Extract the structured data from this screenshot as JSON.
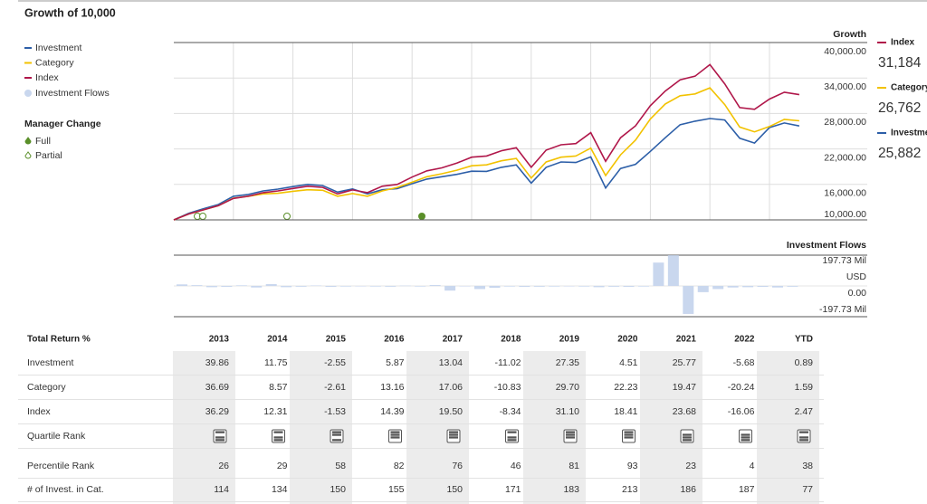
{
  "title": "Growth of 10,000",
  "manager_change": {
    "title": "Manager Change",
    "full": "Full",
    "partial": "Partial"
  },
  "chart_data": [
    {
      "type": "line",
      "y_axis_title": "Growth",
      "categories": [
        null,
        null,
        null,
        null,
        null,
        null,
        null,
        null,
        null,
        null,
        null,
        null,
        null,
        null,
        null,
        null,
        null,
        null,
        null,
        null,
        null,
        null,
        null,
        null,
        null,
        null,
        null,
        null,
        null,
        null,
        null,
        null,
        null,
        null,
        null,
        null,
        null,
        null,
        null,
        null,
        null,
        null,
        null
      ],
      "series": [
        {
          "name": "Investment",
          "color": "#2d5fa8",
          "end_label": "25,882",
          "values": [
            10000,
            11100,
            11900,
            12600,
            13990,
            14300,
            14900,
            15200,
            15630,
            16000,
            15800,
            14700,
            15230,
            14400,
            15100,
            15300,
            16130,
            16900,
            17300,
            17700,
            18230,
            18200,
            18900,
            19300,
            16220,
            18900,
            19800,
            19700,
            20660,
            15400,
            18700,
            19400,
            21590,
            23900,
            26100,
            26700,
            27150,
            26900,
            23800,
            23000,
            25610,
            26400,
            25882
          ]
        },
        {
          "name": "Category",
          "color": "#f2c200",
          "end_label": "26,762",
          "values": [
            10000,
            11000,
            11700,
            12400,
            13670,
            14000,
            14400,
            14500,
            14840,
            15100,
            15000,
            14000,
            14450,
            14000,
            14900,
            15500,
            16360,
            17300,
            17800,
            18400,
            19150,
            19300,
            20000,
            20400,
            17070,
            19800,
            20600,
            20800,
            22140,
            17500,
            21000,
            23500,
            27060,
            29600,
            31000,
            31300,
            32330,
            29500,
            25700,
            24900,
            25790,
            27000,
            26762
          ]
        },
        {
          "name": "Index",
          "color": "#b0174a",
          "end_label": "31,184",
          "values": [
            10000,
            11000,
            11700,
            12400,
            13630,
            14000,
            14600,
            14900,
            15310,
            15700,
            15500,
            14400,
            15070,
            14600,
            15700,
            16000,
            17240,
            18300,
            18800,
            19600,
            20600,
            20800,
            21700,
            22200,
            18890,
            21800,
            22700,
            22900,
            24760,
            19900,
            23900,
            25900,
            29320,
            31800,
            33700,
            34300,
            36260,
            33000,
            29000,
            28700,
            30440,
            31600,
            31184
          ]
        }
      ],
      "ylim": [
        10000,
        40000
      ],
      "yticks": [
        {
          "value": 40000,
          "label": "40,000.00"
        },
        {
          "value": 34000,
          "label": "34,000.00"
        },
        {
          "value": 28000,
          "label": "28,000.00"
        },
        {
          "value": 22000,
          "label": "22,000.00"
        },
        {
          "value": 16000,
          "label": "16,000.00"
        },
        {
          "value": 10000,
          "label": "10,000.00"
        }
      ],
      "grid": true
    },
    {
      "type": "bar",
      "title": "Investment Flows",
      "unit_label": "USD",
      "categories": [
        null,
        null,
        null,
        null,
        null,
        null,
        null,
        null,
        null,
        null,
        null,
        null,
        null,
        null,
        null,
        null,
        null,
        null,
        null,
        null,
        null,
        null,
        null,
        null,
        null,
        null,
        null,
        null,
        null,
        null,
        null,
        null,
        null,
        null,
        null,
        null,
        null,
        null,
        null,
        null,
        null,
        null
      ],
      "series": [
        {
          "name": "Investment Flows",
          "color": "#c9d7ee",
          "values": [
            10,
            5,
            -8,
            -6,
            4,
            -10,
            12,
            -8,
            -5,
            3,
            -6,
            -4,
            -3,
            -4,
            -5,
            2,
            -4,
            6,
            -30,
            -3,
            -20,
            -12,
            -4,
            -6,
            -5,
            -4,
            -3,
            -4,
            -8,
            -5,
            -6,
            -4,
            150,
            197,
            -180,
            -40,
            -20,
            -10,
            -8,
            -6,
            -10,
            -5
          ]
        }
      ],
      "ylim": [
        -197.73,
        197.73
      ],
      "yticks": [
        {
          "value": 197.73,
          "label": "197.73 Mil"
        },
        {
          "value": 0,
          "label": "0.00"
        },
        {
          "value": -197.73,
          "label": "-197.73 Mil"
        }
      ]
    }
  ],
  "table": {
    "header": [
      "Total Return %",
      "2013",
      "2014",
      "2015",
      "2016",
      "2017",
      "2018",
      "2019",
      "2020",
      "2021",
      "2022",
      "YTD"
    ],
    "rows": [
      [
        "Investment",
        "39.86",
        "11.75",
        "-2.55",
        "5.87",
        "13.04",
        "-11.02",
        "27.35",
        "4.51",
        "25.77",
        "-5.68",
        "0.89"
      ],
      [
        "Category",
        "36.69",
        "8.57",
        "-2.61",
        "13.16",
        "17.06",
        "-10.83",
        "29.70",
        "22.23",
        "19.47",
        "-20.24",
        "1.59"
      ],
      [
        "Index",
        "36.29",
        "12.31",
        "-1.53",
        "14.39",
        "19.50",
        "-8.34",
        "31.10",
        "18.41",
        "23.68",
        "-16.06",
        "2.47"
      ],
      [
        "Quartile Rank",
        2,
        2,
        3,
        4,
        4,
        2,
        4,
        4,
        1,
        1,
        2
      ],
      [
        "Percentile Rank",
        "26",
        "29",
        "58",
        "82",
        "76",
        "46",
        "81",
        "93",
        "23",
        "4",
        "38"
      ],
      [
        "# of Invest. in Cat.",
        "114",
        "134",
        "150",
        "155",
        "150",
        "171",
        "183",
        "213",
        "186",
        "187",
        "77"
      ]
    ]
  }
}
